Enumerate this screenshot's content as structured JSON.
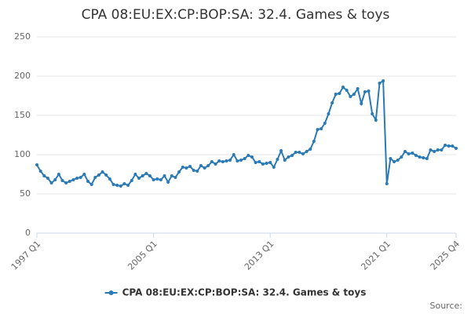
{
  "chart_data": {
    "type": "line",
    "title": "CPA 08:EU:EX:CP:BOP:SA: 32.4. Games & toys",
    "source": "Source:",
    "categories": [
      "1997 Q1",
      null,
      null,
      null,
      null,
      null,
      null,
      null,
      null,
      null,
      null,
      null,
      null,
      null,
      null,
      null,
      null,
      null,
      null,
      null,
      null,
      null,
      null,
      null,
      null,
      null,
      null,
      null,
      null,
      null,
      null,
      null,
      "2005 Q1",
      null,
      null,
      null,
      null,
      null,
      null,
      null,
      null,
      null,
      null,
      null,
      null,
      null,
      null,
      null,
      null,
      null,
      null,
      null,
      null,
      null,
      null,
      null,
      null,
      null,
      null,
      null,
      null,
      null,
      null,
      null,
      "2013 Q1",
      null,
      null,
      null,
      null,
      null,
      null,
      null,
      null,
      null,
      null,
      null,
      null,
      null,
      null,
      null,
      null,
      null,
      null,
      null,
      null,
      null,
      null,
      null,
      null,
      null,
      null,
      null,
      null,
      null,
      null,
      null,
      "2021 Q1",
      null,
      null,
      null,
      null,
      null,
      null,
      null,
      null,
      null,
      null,
      null,
      null,
      null,
      null,
      null,
      null,
      null,
      null,
      "2025 Q4"
    ],
    "series": [
      {
        "name": "CPA 08:EU:EX:CP:BOP:SA: 32.4. Games & toys",
        "color": "#2a7ab6",
        "values": [
          87,
          79,
          73,
          70,
          64,
          68,
          75,
          67,
          64,
          66,
          68,
          70,
          71,
          75,
          66,
          62,
          71,
          74,
          78,
          74,
          69,
          62,
          61,
          60,
          63,
          61,
          67,
          75,
          70,
          73,
          76,
          73,
          68,
          69,
          68,
          73,
          65,
          73,
          71,
          78,
          84,
          83,
          85,
          80,
          79,
          86,
          83,
          86,
          91,
          88,
          92,
          91,
          92,
          93,
          100,
          92,
          93,
          95,
          99,
          97,
          90,
          91,
          88,
          89,
          90,
          84,
          94,
          105,
          93,
          97,
          99,
          103,
          103,
          101,
          104,
          107,
          117,
          132,
          133,
          140,
          152,
          166,
          177,
          178,
          186,
          182,
          174,
          177,
          184,
          165,
          180,
          181,
          152,
          144,
          191,
          194,
          63,
          95,
          91,
          93,
          97,
          104,
          101,
          102,
          99,
          97,
          96,
          95,
          106,
          104,
          106,
          106,
          112,
          111,
          111,
          108
        ]
      }
    ],
    "ylim": [
      0,
      250
    ],
    "yticks": [
      0,
      50,
      100,
      150,
      200,
      250
    ],
    "grid": true,
    "legend": "bottom"
  }
}
